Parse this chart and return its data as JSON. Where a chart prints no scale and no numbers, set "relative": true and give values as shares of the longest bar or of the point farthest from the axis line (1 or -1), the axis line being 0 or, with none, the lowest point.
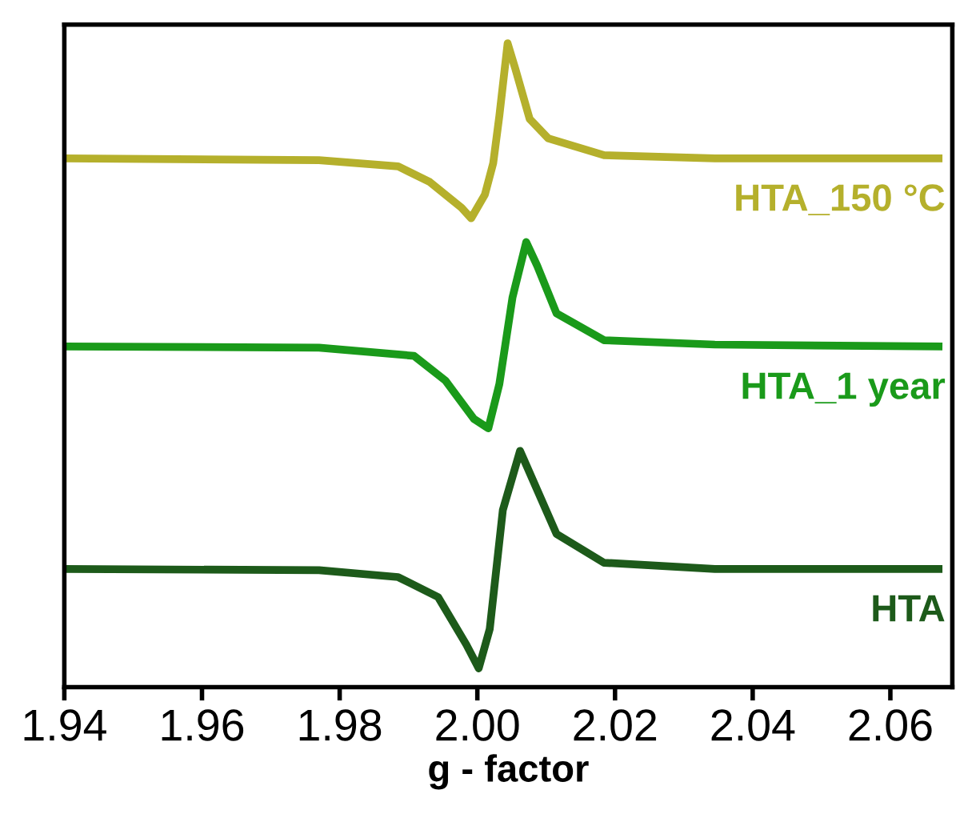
{
  "chart_data": {
    "type": "line",
    "relative": true,
    "xlabel": "g - factor",
    "xlim": [
      1.94,
      2.069
    ],
    "xticks": [
      {
        "value": 1.94,
        "label": "1.94"
      },
      {
        "value": 1.96,
        "label": "1.96"
      },
      {
        "value": 1.98,
        "label": "1.98"
      },
      {
        "value": 2.0,
        "label": "2.00"
      },
      {
        "value": 2.02,
        "label": "2.02"
      },
      {
        "value": 2.04,
        "label": "2.04"
      },
      {
        "value": 2.06,
        "label": "2.06"
      }
    ],
    "grid": false,
    "legend": false,
    "tick_labels": "x",
    "series": [
      {
        "name": "HTA_150 °C",
        "color": "#b5b02c",
        "x": [
          1.94,
          1.977,
          1.9885,
          1.9931,
          1.9977,
          1.9991,
          2.0011,
          2.0023,
          2.0032,
          2.0044,
          2.0055,
          2.0076,
          2.0103,
          2.0184,
          2.0345,
          2.067
        ],
        "values": [
          0.816,
          0.813,
          0.803,
          0.778,
          0.737,
          0.72,
          0.758,
          0.808,
          0.884,
          1.0,
          0.96,
          0.879,
          0.848,
          0.821,
          0.816,
          0.816
        ]
      },
      {
        "name": "HTA_1 year",
        "color": "#1a9a1a",
        "x": [
          1.94,
          1.977,
          1.9908,
          1.9954,
          1.9995,
          2.0016,
          2.0032,
          2.0051,
          2.0071,
          2.0087,
          2.0115,
          2.0184,
          2.0345,
          2.067
        ],
        "values": [
          0.515,
          0.513,
          0.5,
          0.46,
          0.399,
          0.384,
          0.455,
          0.593,
          0.682,
          0.644,
          0.568,
          0.525,
          0.518,
          0.515
        ]
      },
      {
        "name": "HTA",
        "color": "#1d5a1a",
        "x": [
          1.94,
          1.977,
          1.9885,
          1.9943,
          1.9984,
          2.0002,
          2.0018,
          2.0037,
          2.0062,
          2.008,
          2.0115,
          2.0184,
          2.0345,
          2.067
        ],
        "values": [
          0.159,
          0.157,
          0.146,
          0.114,
          0.038,
          0.0,
          0.063,
          0.253,
          0.348,
          0.303,
          0.215,
          0.169,
          0.159,
          0.159
        ]
      }
    ]
  }
}
